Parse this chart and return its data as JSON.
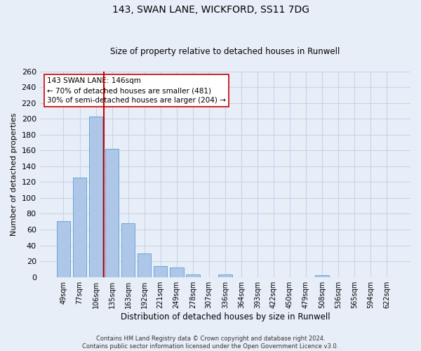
{
  "title": "143, SWAN LANE, WICKFORD, SS11 7DG",
  "subtitle": "Size of property relative to detached houses in Runwell",
  "xlabel": "Distribution of detached houses by size in Runwell",
  "ylabel": "Number of detached properties",
  "bar_color": "#aec6e8",
  "bar_edge_color": "#5a9fd4",
  "background_color": "#e8eef8",
  "grid_color": "#c8d4e8",
  "vline_color": "#cc0000",
  "vline_x": 2.5,
  "annotation_text": "143 SWAN LANE: 146sqm\n← 70% of detached houses are smaller (481)\n30% of semi-detached houses are larger (204) →",
  "annotation_box_color": "#ffffff",
  "annotation_box_edge": "#cc0000",
  "categories": [
    "49sqm",
    "77sqm",
    "106sqm",
    "135sqm",
    "163sqm",
    "192sqm",
    "221sqm",
    "249sqm",
    "278sqm",
    "307sqm",
    "336sqm",
    "364sqm",
    "393sqm",
    "422sqm",
    "450sqm",
    "479sqm",
    "508sqm",
    "536sqm",
    "565sqm",
    "594sqm",
    "622sqm"
  ],
  "values": [
    71,
    126,
    203,
    162,
    68,
    30,
    14,
    12,
    3,
    0,
    3,
    0,
    0,
    0,
    0,
    0,
    2,
    0,
    0,
    0,
    0
  ],
  "ylim": [
    0,
    260
  ],
  "yticks": [
    0,
    20,
    40,
    60,
    80,
    100,
    120,
    140,
    160,
    180,
    200,
    220,
    240,
    260
  ],
  "footnote": "Contains HM Land Registry data © Crown copyright and database right 2024.\nContains public sector information licensed under the Open Government Licence v3.0."
}
